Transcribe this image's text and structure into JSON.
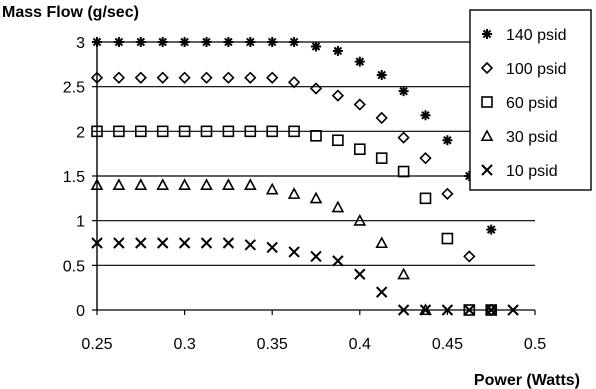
{
  "chart_data": {
    "type": "scatter",
    "ylabel": "Mass Flow (g/sec)",
    "xlabel": "Power (Watts)",
    "xlim": [
      0.25,
      0.5
    ],
    "ylim": [
      0,
      3
    ],
    "xticks": [
      "0.25",
      "0.3",
      "0.35",
      "0.4",
      "0.45",
      "0.5"
    ],
    "yticks": [
      "0",
      "0.5",
      "1",
      "1.5",
      "2",
      "2.5",
      "3"
    ],
    "grid": "horizontal",
    "legend_position": "top-right",
    "series": [
      {
        "name": "140 psid",
        "marker": "asterisk",
        "x": [
          0.25,
          0.2625,
          0.275,
          0.2875,
          0.3,
          0.3125,
          0.325,
          0.3375,
          0.35,
          0.3625,
          0.375,
          0.3875,
          0.4,
          0.4125,
          0.425,
          0.4375,
          0.45,
          0.4625,
          0.475
        ],
        "y": [
          3.0,
          3.0,
          3.0,
          3.0,
          3.0,
          3.0,
          3.0,
          3.0,
          3.0,
          3.0,
          2.95,
          2.9,
          2.78,
          2.63,
          2.45,
          2.18,
          1.9,
          1.5,
          0.9
        ]
      },
      {
        "name": "100 psid",
        "marker": "diamond",
        "x": [
          0.25,
          0.2625,
          0.275,
          0.2875,
          0.3,
          0.3125,
          0.325,
          0.3375,
          0.35,
          0.3625,
          0.375,
          0.3875,
          0.4,
          0.4125,
          0.425,
          0.4375,
          0.45,
          0.4625,
          0.475
        ],
        "y": [
          2.6,
          2.6,
          2.6,
          2.6,
          2.6,
          2.6,
          2.6,
          2.6,
          2.6,
          2.55,
          2.48,
          2.4,
          2.3,
          2.15,
          1.93,
          1.7,
          1.3,
          0.6,
          0.0
        ]
      },
      {
        "name": "60 psid",
        "marker": "square",
        "x": [
          0.25,
          0.2625,
          0.275,
          0.2875,
          0.3,
          0.3125,
          0.325,
          0.3375,
          0.35,
          0.3625,
          0.375,
          0.3875,
          0.4,
          0.4125,
          0.425,
          0.4375,
          0.45,
          0.4625,
          0.475
        ],
        "y": [
          2.0,
          2.0,
          2.0,
          2.0,
          2.0,
          2.0,
          2.0,
          2.0,
          2.0,
          2.0,
          1.95,
          1.9,
          1.8,
          1.7,
          1.55,
          1.25,
          0.8,
          0.0,
          0.0
        ]
      },
      {
        "name": "30 psid",
        "marker": "triangle",
        "x": [
          0.25,
          0.2625,
          0.275,
          0.2875,
          0.3,
          0.3125,
          0.325,
          0.3375,
          0.35,
          0.3625,
          0.375,
          0.3875,
          0.4,
          0.4125,
          0.425,
          0.4375
        ],
        "y": [
          1.4,
          1.4,
          1.4,
          1.4,
          1.4,
          1.4,
          1.4,
          1.4,
          1.35,
          1.3,
          1.25,
          1.15,
          1.0,
          0.75,
          0.4,
          0.0
        ]
      },
      {
        "name": "10 psid",
        "marker": "x",
        "x": [
          0.25,
          0.2625,
          0.275,
          0.2875,
          0.3,
          0.3125,
          0.325,
          0.3375,
          0.35,
          0.3625,
          0.375,
          0.3875,
          0.4,
          0.4125,
          0.425,
          0.4375,
          0.45,
          0.4625,
          0.475,
          0.4875
        ],
        "y": [
          0.75,
          0.75,
          0.75,
          0.75,
          0.75,
          0.75,
          0.75,
          0.73,
          0.7,
          0.65,
          0.6,
          0.55,
          0.4,
          0.2,
          0.0,
          0.0,
          0.0,
          0.0,
          0.0,
          0.0
        ]
      }
    ]
  }
}
